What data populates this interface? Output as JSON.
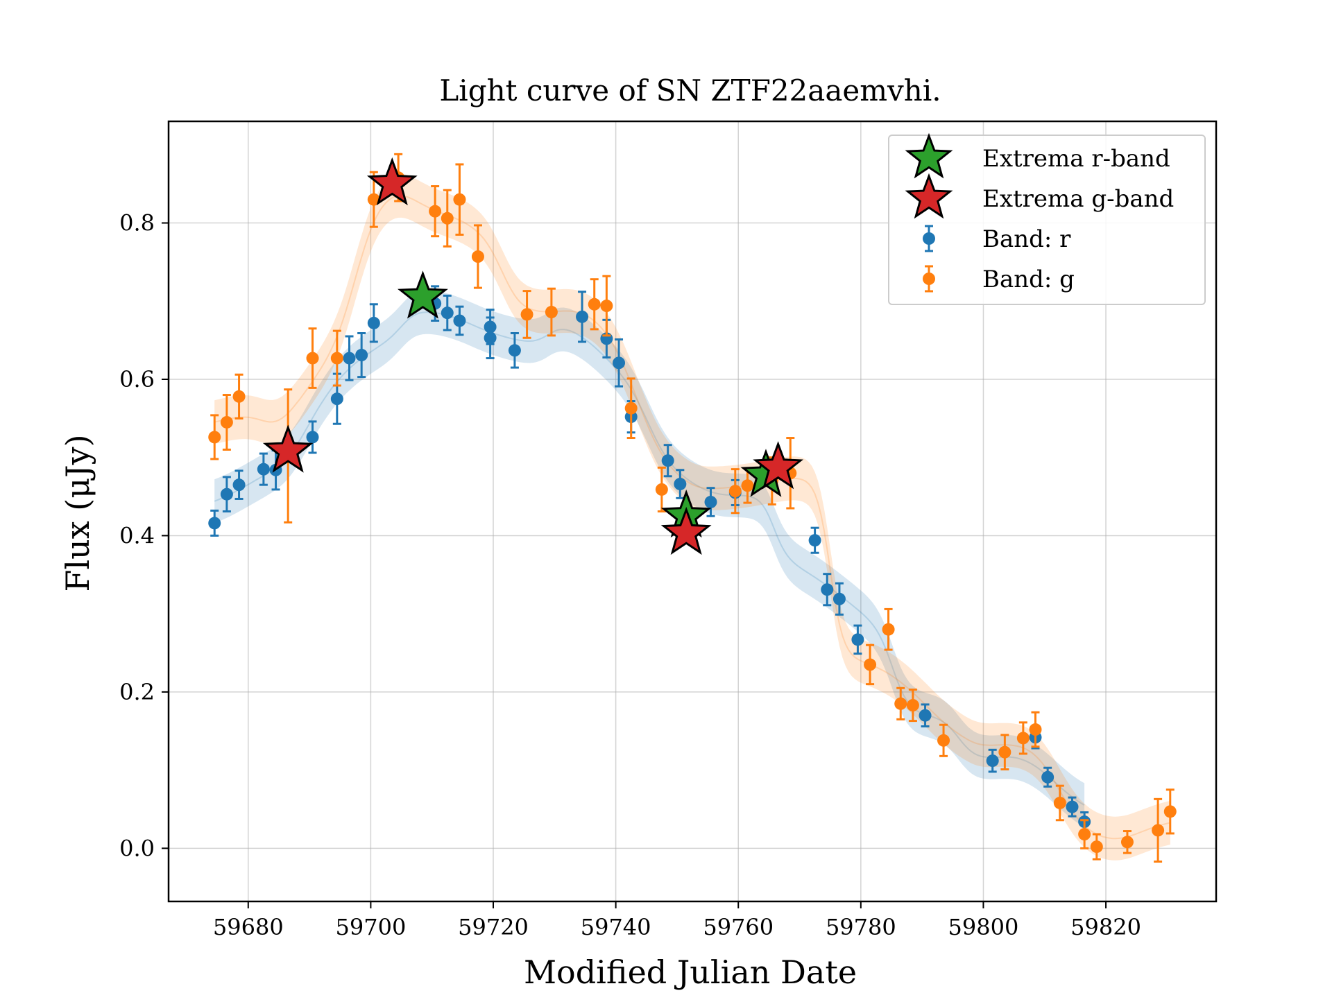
{
  "chart_data": {
    "type": "scatter",
    "title": "Light curve of SN ZTF22aaemvhi.",
    "xlabel": "Modified Julian Date",
    "ylabel": "Flux (μJy)",
    "xlim": [
      59667,
      59838
    ],
    "ylim": [
      -0.068,
      0.93
    ],
    "xticks": [
      59680,
      59700,
      59720,
      59740,
      59760,
      59780,
      59800,
      59820
    ],
    "yticks": [
      0.0,
      0.2,
      0.4,
      0.6,
      0.8
    ],
    "grid": true,
    "legend_position": "top-right",
    "colors": {
      "r": "#1f77b4",
      "g": "#ff7f0e",
      "extrema_r": "#2ca02c",
      "extrema_g": "#d62728"
    },
    "series": [
      {
        "name": "Band: r",
        "band": "r",
        "x": [
          59674.5,
          59676.5,
          59678.5,
          59682.5,
          59684.5,
          59690.5,
          59694.5,
          59696.5,
          59698.5,
          59700.5,
          59710.5,
          59712.5,
          59714.5,
          59719.5,
          59719.5,
          59723.5,
          59734.5,
          59738.5,
          59740.5,
          59742.5,
          59748.5,
          59750.5,
          59755.5,
          59759.5,
          59772.5,
          59774.5,
          59776.5,
          59779.5,
          59790.5,
          59801.5,
          59808.5,
          59810.5,
          59814.5,
          59816.5
        ],
        "y": [
          0.416,
          0.453,
          0.465,
          0.485,
          0.484,
          0.526,
          0.575,
          0.627,
          0.631,
          0.672,
          0.697,
          0.685,
          0.675,
          0.667,
          0.653,
          0.637,
          0.68,
          0.652,
          0.621,
          0.552,
          0.496,
          0.466,
          0.443,
          0.455,
          0.394,
          0.331,
          0.319,
          0.267,
          0.17,
          0.112,
          0.142,
          0.091,
          0.053,
          0.034
        ],
        "err": [
          0.016,
          0.022,
          0.018,
          0.02,
          0.025,
          0.02,
          0.032,
          0.028,
          0.028,
          0.024,
          0.022,
          0.022,
          0.018,
          0.022,
          0.026,
          0.022,
          0.032,
          0.024,
          0.03,
          0.02,
          0.02,
          0.018,
          0.018,
          0.016,
          0.016,
          0.02,
          0.02,
          0.018,
          0.014,
          0.014,
          0.014,
          0.012,
          0.012,
          0.012
        ]
      },
      {
        "name": "Band: g",
        "band": "g",
        "x": [
          59674.5,
          59676.5,
          59678.5,
          59686.5,
          59690.5,
          59694.5,
          59700.5,
          59704.5,
          59710.5,
          59712.5,
          59714.5,
          59717.5,
          59725.5,
          59729.5,
          59736.5,
          59738.5,
          59742.5,
          59747.5,
          59759.5,
          59761.5,
          59765.5,
          59768.5,
          59781.5,
          59784.5,
          59786.5,
          59788.5,
          59793.5,
          59803.5,
          59806.5,
          59808.5,
          59812.5,
          59816.5,
          59818.5,
          59823.5,
          59828.5,
          59830.5
        ],
        "y": [
          0.526,
          0.545,
          0.578,
          0.502,
          0.627,
          0.627,
          0.83,
          0.858,
          0.815,
          0.806,
          0.83,
          0.757,
          0.683,
          0.686,
          0.696,
          0.694,
          0.563,
          0.459,
          0.457,
          0.464,
          0.47,
          0.48,
          0.235,
          0.28,
          0.185,
          0.183,
          0.138,
          0.123,
          0.141,
          0.152,
          0.058,
          0.018,
          0.002,
          0.008,
          0.023,
          0.047
        ],
        "err": [
          0.028,
          0.035,
          0.028,
          0.085,
          0.038,
          0.035,
          0.035,
          0.03,
          0.032,
          0.036,
          0.045,
          0.04,
          0.03,
          0.03,
          0.032,
          0.038,
          0.038,
          0.028,
          0.028,
          0.022,
          0.03,
          0.045,
          0.025,
          0.026,
          0.02,
          0.02,
          0.02,
          0.022,
          0.02,
          0.022,
          0.022,
          0.018,
          0.016,
          0.014,
          0.04,
          0.028
        ]
      },
      {
        "name": "Extrema r-band",
        "band": "r",
        "marker": "star",
        "x": [
          59708.5,
          59751.5,
          59764.5
        ],
        "y": [
          0.705,
          0.425,
          0.477
        ]
      },
      {
        "name": "Extrema g-band",
        "band": "g",
        "marker": "star",
        "x": [
          59686.5,
          59703.5,
          59751.5,
          59766.5
        ],
        "y": [
          0.508,
          0.85,
          0.403,
          0.487
        ]
      }
    ]
  }
}
